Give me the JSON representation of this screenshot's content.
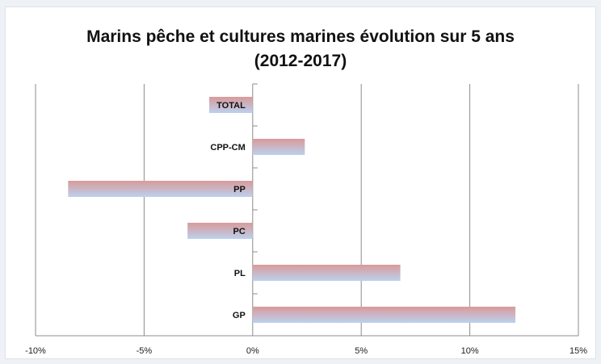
{
  "chart_data": {
    "type": "bar",
    "orientation": "horizontal",
    "title_lines": [
      "Marins pêche et cultures marines évolution sur 5 ans",
      "(2012-2017)"
    ],
    "categories": [
      "TOTAL",
      "CPP-CM",
      "PP",
      "PC",
      "PL",
      "GP"
    ],
    "values": [
      -2.0,
      2.4,
      -8.5,
      -3.0,
      6.8,
      12.1
    ],
    "x_range": [
      -10,
      15
    ],
    "x_ticks": [
      "-10%",
      "-5%",
      "0%",
      "5%",
      "10%",
      "15%"
    ],
    "x_tick_values": [
      -10,
      -5,
      0,
      5,
      10,
      15
    ],
    "value_unit": "%",
    "grid": "vertical major gridlines",
    "legend": "none",
    "bar_gradient": [
      "#d99a9a",
      "#bcd1ee"
    ]
  }
}
